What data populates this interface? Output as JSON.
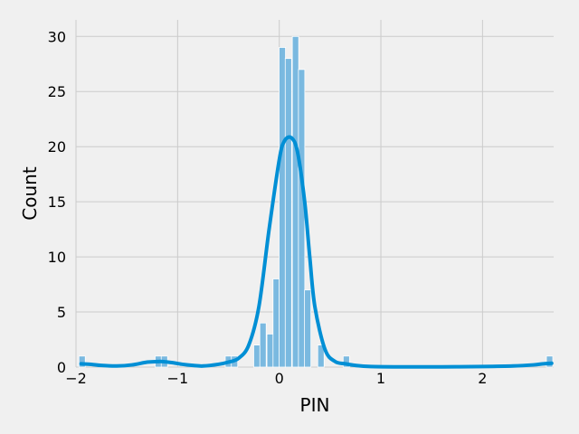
{
  "chart_data": {
    "type": "histogram",
    "xlabel": "PIN",
    "ylabel": "Count",
    "xlim": [
      -2.0,
      2.7
    ],
    "ylim": [
      0,
      31.5
    ],
    "xticks": [
      -2,
      -1,
      0,
      1,
      2
    ],
    "xtick_labels": [
      "−2",
      "−1",
      "0",
      "1",
      "2"
    ],
    "yticks": [
      0,
      5,
      10,
      15,
      20,
      25,
      30
    ],
    "ytick_labels": [
      "0",
      "5",
      "10",
      "15",
      "20",
      "25",
      "30"
    ],
    "grid": true,
    "bin_width": 0.0625,
    "bars": [
      {
        "x": -1.94,
        "count": 1
      },
      {
        "x": -1.19,
        "count": 1
      },
      {
        "x": -1.13,
        "count": 1
      },
      {
        "x": -0.5,
        "count": 1
      },
      {
        "x": -0.44,
        "count": 1
      },
      {
        "x": -0.22,
        "count": 2
      },
      {
        "x": -0.16,
        "count": 4
      },
      {
        "x": -0.09,
        "count": 3
      },
      {
        "x": -0.03,
        "count": 8
      },
      {
        "x": 0.03,
        "count": 29
      },
      {
        "x": 0.09,
        "count": 28
      },
      {
        "x": 0.16,
        "count": 30
      },
      {
        "x": 0.22,
        "count": 27
      },
      {
        "x": 0.28,
        "count": 7
      },
      {
        "x": 0.41,
        "count": 2
      },
      {
        "x": 0.66,
        "count": 1
      },
      {
        "x": 2.66,
        "count": 1
      }
    ],
    "kde": {
      "x": [
        -1.95,
        -1.85,
        -1.75,
        -1.6,
        -1.45,
        -1.3,
        -1.2,
        -1.15,
        -1.05,
        -0.95,
        -0.85,
        -0.75,
        -0.6,
        -0.5,
        -0.4,
        -0.3,
        -0.2,
        -0.1,
        0.0,
        0.05,
        0.12,
        0.18,
        0.25,
        0.3,
        0.35,
        0.45,
        0.55,
        0.65,
        0.75,
        0.9,
        1.2,
        1.6,
        2.0,
        2.3,
        2.5,
        2.6,
        2.68
      ],
      "y": [
        0.3,
        0.25,
        0.15,
        0.1,
        0.2,
        0.45,
        0.5,
        0.5,
        0.4,
        0.25,
        0.15,
        0.1,
        0.25,
        0.45,
        0.8,
        2.0,
        5.5,
        12.5,
        18.8,
        20.5,
        20.8,
        19.5,
        15.0,
        10.0,
        5.5,
        1.6,
        0.5,
        0.3,
        0.15,
        0.05,
        0.02,
        0.02,
        0.05,
        0.1,
        0.2,
        0.3,
        0.35
      ]
    },
    "colors": {
      "bar_fill": "#7ab9e0",
      "bar_edge": "#ffffff",
      "kde_line": "#008fd5",
      "background": "#f0f0f0",
      "grid": "#cbcbcb"
    }
  }
}
